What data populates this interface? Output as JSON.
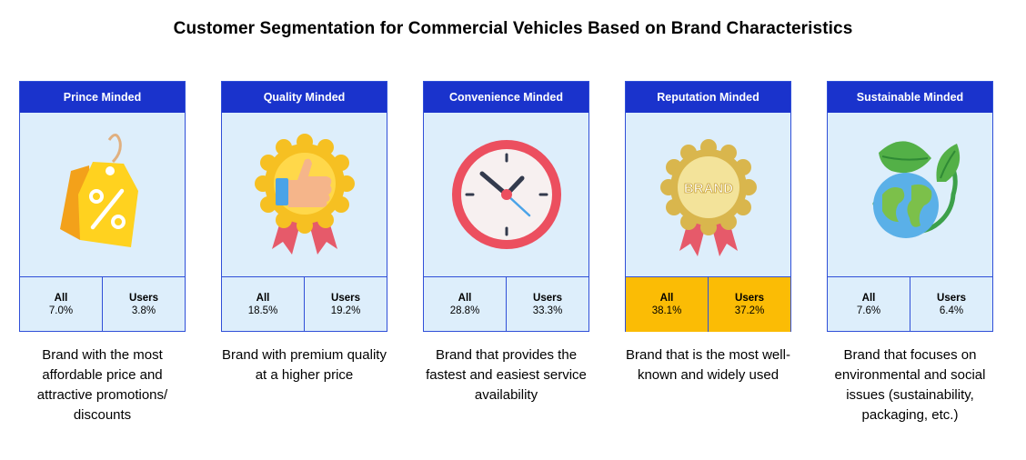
{
  "title": "Customer Segmentation for Commercial Vehicles Based on Brand Characteristics",
  "stat_labels": {
    "all": "All",
    "users": "Users"
  },
  "highlight_color": "#fbbc05",
  "header_color": "#1a33cc",
  "segments": [
    {
      "name": "Prince Minded",
      "icon": "price-tag-percent-icon",
      "all": "7.0%",
      "users": "3.8%",
      "highlighted": false,
      "description": "Brand with the most affordable price and attractive promotions/ discounts"
    },
    {
      "name": "Quality Minded",
      "icon": "quality-badge-thumbs-up-icon",
      "all": "18.5%",
      "users": "19.2%",
      "highlighted": false,
      "description": "Brand with premium quality at a higher price"
    },
    {
      "name": "Convenience Minded",
      "icon": "clock-icon",
      "all": "28.8%",
      "users": "33.3%",
      "highlighted": false,
      "description": "Brand that provides the fastest and easiest service availability"
    },
    {
      "name": "Reputation Minded",
      "icon": "brand-medal-icon",
      "icon_text": "BRAND",
      "all": "38.1%",
      "users": "37.2%",
      "highlighted": true,
      "description": "Brand that is the most well-known and widely used"
    },
    {
      "name": "Sustainable Minded",
      "icon": "globe-leaves-icon",
      "all": "7.6%",
      "users": "6.4%",
      "highlighted": false,
      "description": "Brand that focuses on environmental and social issues (sustainability, packaging, etc.)"
    }
  ]
}
